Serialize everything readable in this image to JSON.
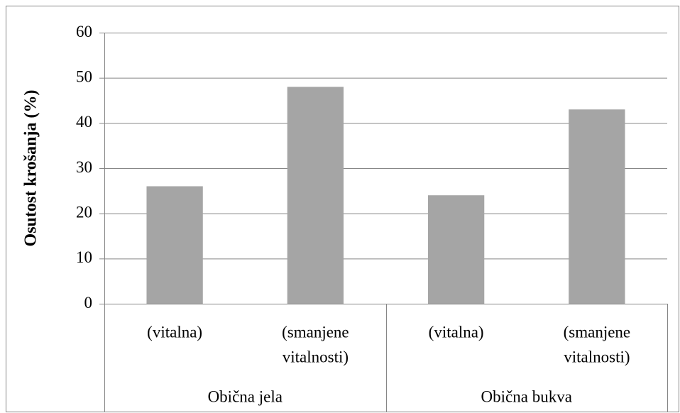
{
  "chart_data": {
    "type": "bar",
    "y_label": "Osutost krošanja (%)",
    "groups": [
      {
        "name": "Obična jela",
        "categories": [
          [
            "(vitalna)"
          ],
          [
            "(smanjene",
            "vitalnosti)"
          ]
        ],
        "values": [
          26,
          48
        ]
      },
      {
        "name": "Obična bukva",
        "categories": [
          [
            "(vitalna)"
          ],
          [
            "(smanjene",
            "vitalnosti)"
          ]
        ],
        "values": [
          24,
          43
        ]
      }
    ],
    "color": "#a5a5a5",
    "ylim": [
      0,
      60
    ],
    "yticks": [
      0,
      10,
      20,
      30,
      40,
      50,
      60
    ],
    "grid": true
  }
}
